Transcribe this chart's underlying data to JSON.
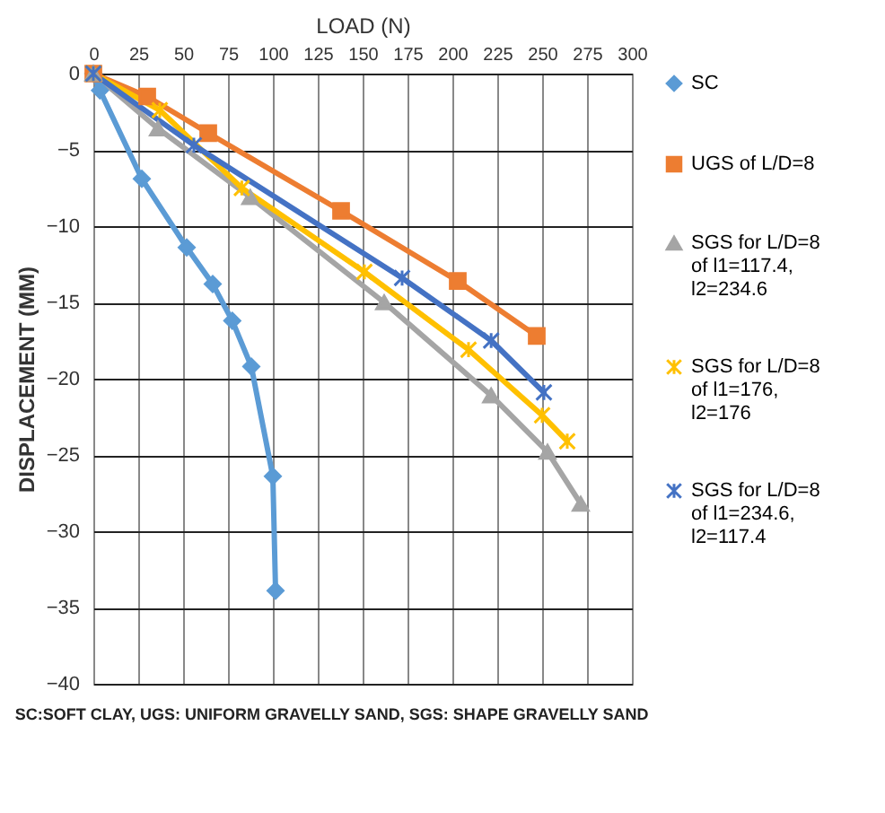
{
  "chart_data": {
    "type": "line",
    "xlabel": "LOAD (N)",
    "ylabel": "DISPLACEMENT (MM)",
    "xlim": [
      0,
      300
    ],
    "xticks": [
      0,
      25,
      50,
      75,
      100,
      125,
      150,
      175,
      200,
      225,
      250,
      275,
      300
    ],
    "ylim": [
      -40,
      0
    ],
    "yticks": [
      -40,
      -35,
      -30,
      -25,
      -20,
      -15,
      -10,
      -5,
      0
    ],
    "grid": true,
    "legend": "right",
    "annotations": [
      "SC:SOFT CLAY, UGS: UNIFORM GRAVELLY SAND, SGS: SHAPE GRAVELLY SAND"
    ],
    "series": [
      {
        "name": "SC",
        "color": "#5b9bd5",
        "marker": "diamond",
        "x": [
          0,
          3.7,
          27,
          52,
          66.5,
          77.4,
          88,
          100,
          101.5
        ],
        "values": [
          0,
          -1.1,
          -6.9,
          -11.4,
          -13.8,
          -16.2,
          -19.2,
          -26.4,
          -33.9
        ]
      },
      {
        "name": "UGS of L/D=8",
        "color": "#ed7d31",
        "marker": "square",
        "x": [
          0,
          30,
          64,
          138,
          203,
          247
        ],
        "values": [
          0,
          -1.5,
          -3.9,
          -9,
          -13.6,
          -17.2
        ]
      },
      {
        "name": "SGS for L/D=8 of l1=117.4, l2=234.6",
        "color": "#a5a5a5",
        "marker": "triangle",
        "x": [
          0,
          36,
          87.4,
          162,
          221.6,
          253,
          271.5
        ],
        "values": [
          0,
          -3.6,
          -8.1,
          -15,
          -21.1,
          -24.8,
          -28.2
        ]
      },
      {
        "name": "SGS for L/D=8 of l1=176, l2=176",
        "color": "#ffc000",
        "marker": "cross",
        "x": [
          0,
          37,
          82.7,
          151,
          209,
          250,
          264
        ],
        "values": [
          0,
          -2.4,
          -7.5,
          -13,
          -18.1,
          -22.4,
          -24.1
        ]
      },
      {
        "name": "SGS for L/D=8 of l1=234.6, l2=117.4",
        "color": "#4472c4",
        "marker": "cross",
        "x": [
          0,
          56,
          172,
          221.6,
          251
        ],
        "values": [
          0,
          -4.7,
          -13.4,
          -17.5,
          -20.9
        ]
      }
    ]
  }
}
